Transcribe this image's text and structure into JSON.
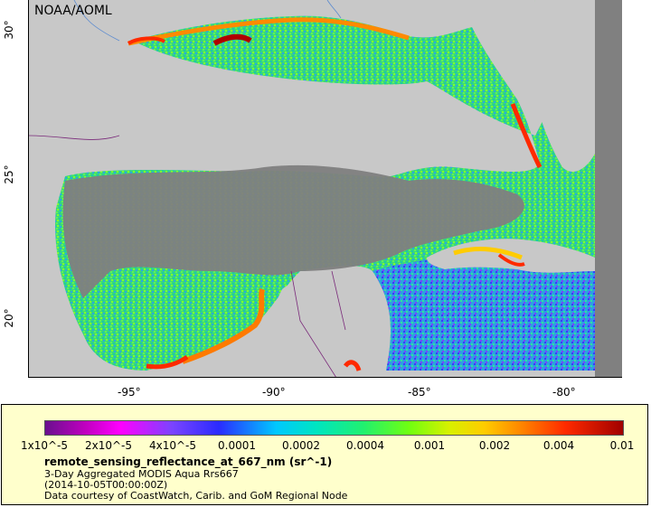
{
  "map": {
    "credit": "NOAA/AOML",
    "y_ticks": [
      "30°",
      "25°",
      "20°"
    ],
    "x_ticks": [
      "-95°",
      "-90°",
      "-85°",
      "-80°"
    ],
    "colors": {
      "land": "#c8c8c8",
      "nodata": "#808080",
      "frame_outer": "#808080"
    }
  },
  "legend": {
    "colorbar_labels": [
      "1x10^-5",
      "2x10^-5",
      "4x10^-5",
      "0.0001",
      "0.0002",
      "0.0004",
      "0.001",
      "0.002",
      "0.004",
      "0.01"
    ],
    "title": "remote_sensing_reflectance_at_667_nm (sr^-1)",
    "line1": "3-Day Aggregated MODIS Aqua Rrs667",
    "line2": "(2014-10-05T00:00:00Z)",
    "line3": "Data courtesy of CoastWatch, Carib. and GoM Regional Node"
  }
}
